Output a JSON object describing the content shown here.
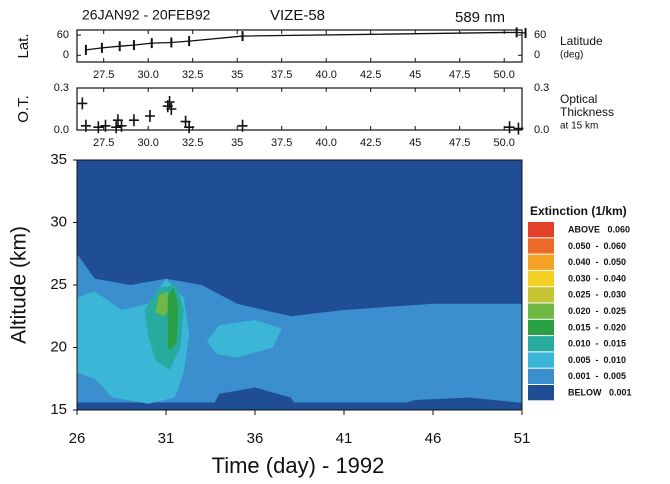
{
  "chart_data": [
    {
      "type": "line",
      "subtitle": "26JAN92 - 20FEB92",
      "title": "VIZE-58",
      "wavelength": "589 nm",
      "ylabel": "Lat.",
      "y2label": [
        "Latitude",
        "(deg)"
      ],
      "color": "#111111",
      "x": [
        26.5,
        27.4,
        28.4,
        29.2,
        30.2,
        31.3,
        32.3,
        35.3,
        50.7,
        51.2
      ],
      "values": [
        16,
        22,
        27,
        30,
        36,
        38,
        42,
        57,
        68,
        66
      ],
      "xlim": [
        26,
        51
      ],
      "xticks": [
        27.5,
        {
          "value": 30,
          "label": "30.0"
        },
        32.5,
        35,
        37.5,
        {
          "value": 40,
          "label": "40.0"
        },
        42.5,
        45,
        47.5,
        {
          "value": 50,
          "label": "50.0"
        }
      ],
      "ylim": [
        -20,
        75
      ],
      "yticks": [
        0,
        60
      ],
      "y2ticks": [
        0,
        60
      ]
    },
    {
      "type": "scatter",
      "ylabel": "O.T.",
      "y2label": [
        "Optical",
        "Thickness",
        "at 15 km"
      ],
      "color": "#111111",
      "x": [
        26.3,
        26.5,
        27.2,
        27.6,
        28.2,
        28.3,
        28.5,
        29.2,
        30.1,
        31.1,
        31.2,
        31.3,
        32.1,
        32.3,
        35.3,
        50.3,
        50.8
      ],
      "values": [
        0.19,
        0.03,
        0.02,
        0.03,
        0.02,
        0.07,
        0.03,
        0.07,
        0.1,
        0.17,
        0.2,
        0.15,
        0.06,
        0.02,
        0.03,
        0.02,
        0.01
      ],
      "xlim": [
        26,
        51
      ],
      "xticks": [
        27.5,
        {
          "value": 30,
          "label": "30.0"
        },
        32.5,
        35,
        37.5,
        {
          "value": 40,
          "label": "40.0"
        },
        42.5,
        45,
        47.5,
        {
          "value": 50,
          "label": "50.0"
        }
      ],
      "ylim": [
        0,
        0.3
      ],
      "yticks": [
        {
          "value": 0,
          "label": "0.0"
        },
        0.3
      ],
      "y2ticks": [
        {
          "value": 0,
          "label": "0.0"
        },
        0.3
      ]
    },
    {
      "type": "contour",
      "xlabel": "Time (day) - 1992",
      "ylabel": "Altitude (km)",
      "xlim": [
        26,
        51
      ],
      "ylim": [
        15,
        35
      ],
      "xticks": [
        26,
        31,
        36,
        41,
        46,
        51
      ],
      "yticks": [
        15,
        20,
        25,
        30,
        35
      ],
      "legend_title": "Extinction (1/km)",
      "legend": [
        {
          "label": "ABOVE   0.060",
          "color": "#e3412b"
        },
        {
          "label": "0.050  -  0.060",
          "color": "#ee6a2b"
        },
        {
          "label": "0.040  -  0.050",
          "color": "#f3a225"
        },
        {
          "label": "0.030  -  0.040",
          "color": "#f2cf22"
        },
        {
          "label": "0.025  -  0.030",
          "color": "#c6c432"
        },
        {
          "label": "0.020  -  0.025",
          "color": "#6fb843"
        },
        {
          "label": "0.015  -  0.020",
          "color": "#2a9f43"
        },
        {
          "label": "0.010  -  0.015",
          "color": "#26ab9e"
        },
        {
          "label": "0.005  -  0.010",
          "color": "#3bb6d6"
        },
        {
          "label": "0.001  -  0.005",
          "color": "#3b8fce"
        },
        {
          "label": "BELOW   0.001",
          "color": "#1f4e95"
        }
      ],
      "contours": [
        {
          "color": "#1f4e95",
          "x": [
            26,
            51,
            51,
            26
          ],
          "y": [
            15,
            15,
            35,
            35
          ]
        },
        {
          "color": "#3b8fce",
          "x": [
            26,
            27,
            29,
            31,
            33,
            35,
            38,
            41,
            46,
            51,
            51,
            26
          ],
          "y": [
            27.5,
            25.5,
            25,
            25.5,
            25,
            23.5,
            22.5,
            23,
            23.5,
            23.5,
            15.6,
            15.6
          ]
        },
        {
          "color": "#1f4e95",
          "x": [
            33.5,
            34,
            36,
            38,
            38.5
          ],
          "y": [
            15,
            16.3,
            16.8,
            16,
            15
          ]
        },
        {
          "color": "#1f4e95",
          "x": [
            43,
            45,
            48,
            50.8,
            51
          ],
          "y": [
            15,
            15.8,
            16,
            15.6,
            15
          ]
        },
        {
          "color": "#3bb6d6",
          "x": [
            26,
            27,
            28.5,
            30,
            31,
            32,
            32.3,
            32,
            31.5,
            30,
            28,
            27,
            26
          ],
          "y": [
            24,
            24.5,
            23,
            23.5,
            25.5,
            24,
            21,
            18,
            16,
            15.5,
            16,
            17.5,
            18
          ]
        },
        {
          "color": "#3bb6d6",
          "x": [
            33.3,
            34,
            36,
            37.5,
            37,
            35,
            33.8
          ],
          "y": [
            20.5,
            21.8,
            22.2,
            21.5,
            20,
            19.2,
            19.5
          ]
        },
        {
          "color": "#26ab9e",
          "x": [
            29.8,
            30.6,
            31.6,
            32,
            31.8,
            31.2,
            30.4,
            30
          ],
          "y": [
            23,
            24.8,
            25,
            23,
            20,
            18.2,
            19,
            21
          ]
        },
        {
          "color": "#6fb843",
          "x": [
            30.4,
            30.6,
            31.1,
            31.2,
            30.9
          ],
          "y": [
            22.8,
            24.2,
            24.5,
            23.2,
            22.5
          ]
        },
        {
          "color": "#2a9f43",
          "x": [
            31.1,
            31.1,
            31.4,
            31.7,
            31.6,
            31.3
          ],
          "y": [
            20,
            24,
            24.8,
            23.5,
            20.5,
            19.8
          ]
        }
      ]
    }
  ]
}
